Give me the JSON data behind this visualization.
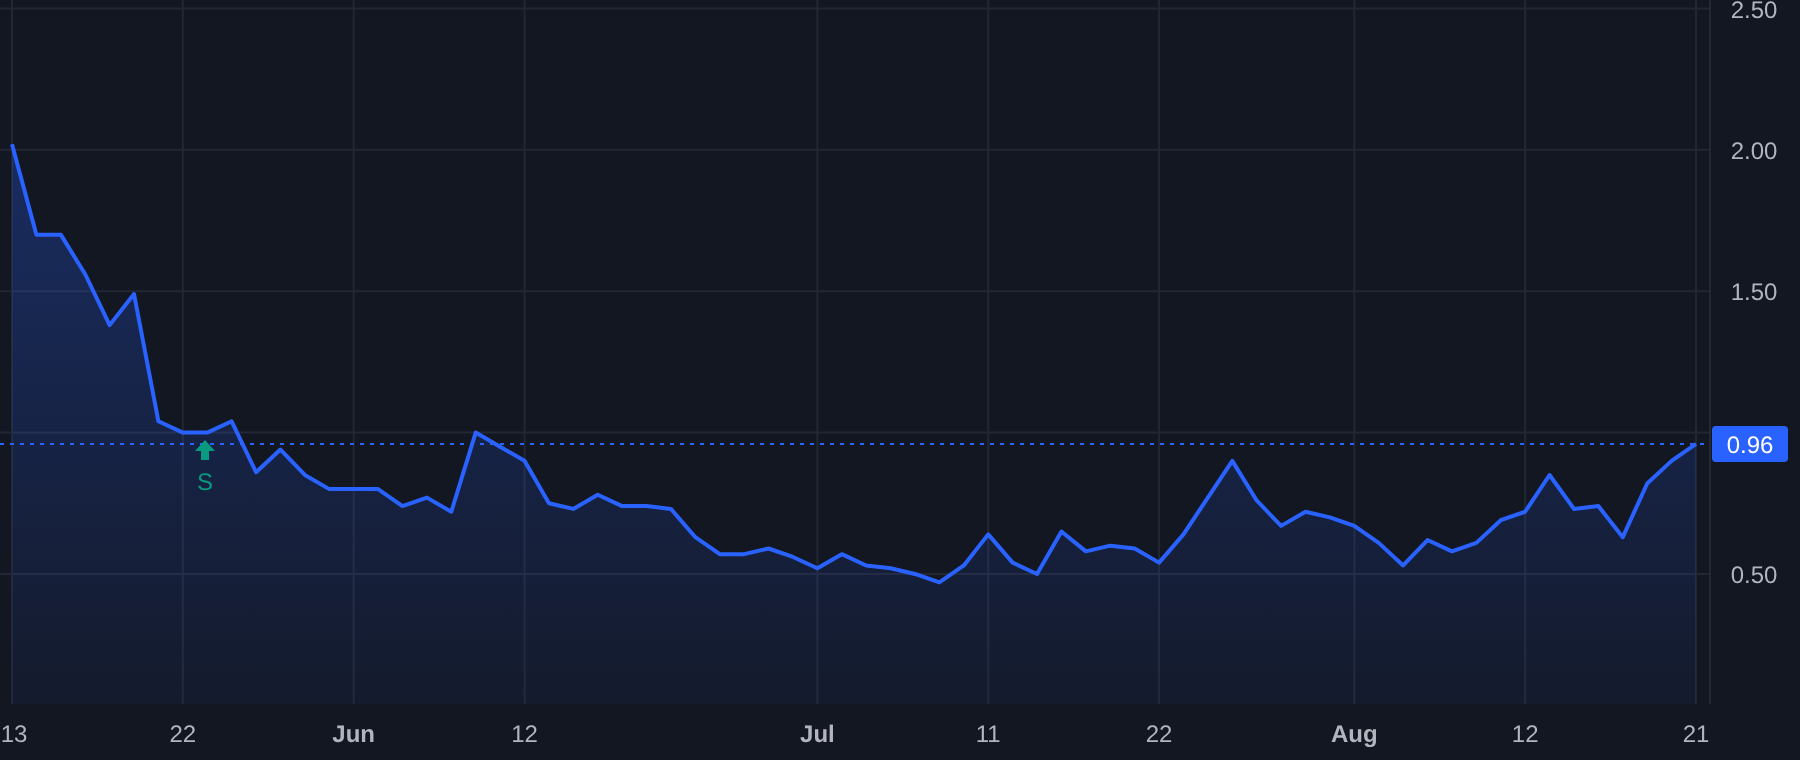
{
  "chart_data": {
    "type": "area",
    "categories": [
      "13",
      null,
      null,
      null,
      null,
      null,
      null,
      "22",
      null,
      null,
      null,
      null,
      null,
      null,
      "Jun",
      null,
      null,
      null,
      null,
      null,
      null,
      "12",
      null,
      null,
      null,
      null,
      null,
      null,
      null,
      null,
      null,
      null,
      null,
      "Jul",
      null,
      null,
      null,
      null,
      null,
      null,
      "11",
      null,
      null,
      null,
      null,
      null,
      null,
      "22",
      null,
      null,
      null,
      null,
      null,
      null,
      null,
      "Aug",
      null,
      null,
      null,
      null,
      null,
      null,
      "12",
      null,
      null,
      null,
      null,
      null,
      null,
      "21"
    ],
    "series": [
      {
        "color": "#2962ff",
        "values": [
          2.02,
          1.7,
          1.7,
          1.56,
          1.38,
          1.49,
          1.04,
          1.0,
          1.0,
          1.04,
          0.86,
          0.94,
          0.85,
          0.8,
          0.8,
          0.8,
          0.74,
          0.77,
          0.72,
          1.0,
          0.95,
          0.9,
          0.75,
          0.73,
          0.78,
          0.74,
          0.74,
          0.73,
          0.63,
          0.57,
          0.57,
          0.59,
          0.56,
          0.52,
          0.57,
          0.53,
          0.52,
          0.5,
          0.47,
          0.53,
          0.64,
          0.54,
          0.5,
          0.65,
          0.58,
          0.6,
          0.59,
          0.54,
          0.64,
          0.77,
          0.9,
          0.76,
          0.67,
          0.72,
          0.7,
          0.67,
          0.61,
          0.53,
          0.62,
          0.58,
          0.61,
          0.69,
          0.72,
          0.85,
          0.73,
          0.74,
          0.63,
          0.82,
          0.9,
          0.96
        ]
      }
    ],
    "ylim": [
      0.04,
      2.53
    ],
    "yticks": [
      {
        "value": 0.5,
        "label": "0.50"
      },
      {
        "value": 1,
        "label": null
      },
      {
        "value": 1.5,
        "label": "1.50"
      },
      {
        "value": 2,
        "label": "2.00"
      },
      {
        "value": 2.5,
        "label": "2.50"
      }
    ],
    "grid": true,
    "ref_lines": [
      {
        "axis": "y",
        "value": 0.96,
        "label": "0.96",
        "color": "#2962ff",
        "line_style": "dotted"
      }
    ],
    "annotations": [
      "S"
    ]
  }
}
